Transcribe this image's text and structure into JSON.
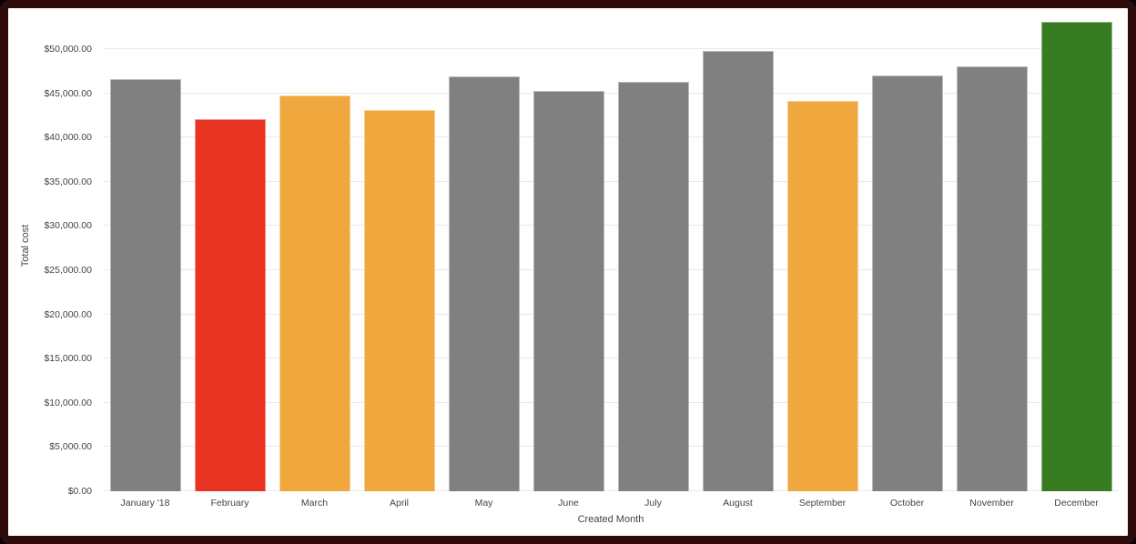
{
  "frame": {
    "border_color": "#2e0a08",
    "background_color": "#ffffff",
    "gridline_color": "#e9e9e9",
    "text_color": "#434343"
  },
  "chart_data": {
    "type": "bar",
    "title": "",
    "xlabel": "Created Month",
    "ylabel": "Total cost",
    "categories": [
      "January '18",
      "February",
      "March",
      "April",
      "May",
      "June",
      "July",
      "August",
      "September",
      "October",
      "November",
      "December"
    ],
    "values": [
      46600,
      42100,
      44800,
      43100,
      46900,
      45300,
      46350,
      49850,
      44100,
      47000,
      48050,
      53100
    ],
    "bar_colors": [
      "#808080",
      "#e93323",
      "#f0a73d",
      "#f0a73d",
      "#808080",
      "#808080",
      "#808080",
      "#808080",
      "#f0a73d",
      "#808080",
      "#808080",
      "#387c22"
    ],
    "color_legend": {
      "default": "#808080",
      "alert_red": "#e93323",
      "warning_orange": "#f0a73d",
      "good_green": "#387c22"
    },
    "ylim": [
      0,
      53100
    ],
    "y_ticks": {
      "values": [
        0,
        5000,
        10000,
        15000,
        20000,
        25000,
        30000,
        35000,
        40000,
        45000,
        50000
      ],
      "labels": [
        "$0.00",
        "$5,000.00",
        "$10,000.00",
        "$15,000.00",
        "$20,000.00",
        "$25,000.00",
        "$30,000.00",
        "$35,000.00",
        "$40,000.00",
        "$45,000.00",
        "$50,000.00"
      ]
    },
    "grid": "horizontal",
    "legend_position": "none"
  }
}
